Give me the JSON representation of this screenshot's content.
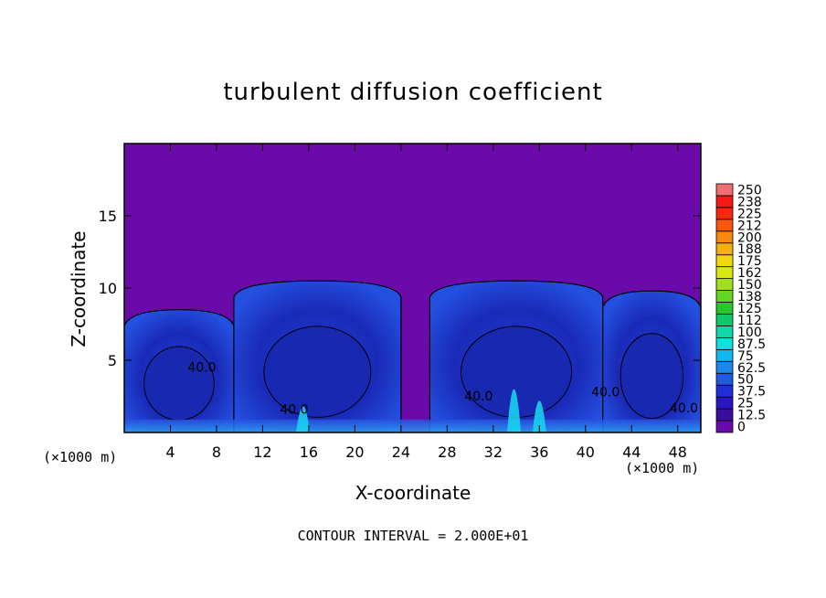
{
  "chart_data": {
    "type": "heatmap",
    "title": "turbulent diffusion coefficient",
    "xlabel": "X-coordinate",
    "ylabel": "Z-coordinate",
    "x_unit": "(×1000 m)",
    "z_unit": "(×1000 m)",
    "xlim": [
      0,
      50
    ],
    "ylim": [
      0,
      20
    ],
    "x_ticks": [
      4,
      8,
      12,
      16,
      20,
      24,
      28,
      32,
      36,
      40,
      44,
      48
    ],
    "y_ticks": [
      5,
      10,
      15
    ],
    "contour_labels": [
      {
        "text": "40.0",
        "x": 5.5,
        "z": 4.2
      },
      {
        "text": "40.0",
        "x": 13.5,
        "z": 1.3
      },
      {
        "text": "40.0",
        "x": 29.5,
        "z": 2.2
      },
      {
        "text": "40.0",
        "x": 40.5,
        "z": 2.5
      },
      {
        "text": "40.0",
        "x": 47.3,
        "z": 1.4
      }
    ],
    "note": "CONTOUR INTERVAL = 2.000E+01",
    "colorbar": {
      "labels": [
        "0",
        "12.5",
        "25",
        "37.5",
        "50",
        "62.5",
        "75",
        "87.5",
        "100",
        "112",
        "125",
        "138",
        "150",
        "162",
        "175",
        "188",
        "200",
        "212",
        "225",
        "238",
        "250"
      ],
      "colors": [
        "#6a0aa8",
        "#3a0ca0",
        "#2a16c0",
        "#1f2fd6",
        "#1f5ae6",
        "#1f86ee",
        "#10b8f0",
        "#10e0e0",
        "#10d8a8",
        "#10c868",
        "#28c828",
        "#60d820",
        "#a0e020",
        "#d8e810",
        "#f0d810",
        "#f8b010",
        "#f88810",
        "#f85810",
        "#f82810",
        "#f81818",
        "#f07070"
      ]
    },
    "cells": [
      {
        "x0": 0.0,
        "x1": 9.5,
        "z0": 0.0,
        "z1": 8.5,
        "value": 45,
        "region": "cell-1"
      },
      {
        "x0": 9.5,
        "x1": 24.0,
        "z0": 0.0,
        "z1": 10.5,
        "value": 45,
        "region": "cell-2"
      },
      {
        "x0": 26.5,
        "x1": 41.5,
        "z0": 0.0,
        "z1": 10.5,
        "value": 45,
        "region": "cell-3"
      },
      {
        "x0": 41.5,
        "x1": 50.0,
        "z0": 0.0,
        "z1": 9.8,
        "value": 45,
        "region": "cell-4"
      }
    ],
    "background_value": 0
  }
}
